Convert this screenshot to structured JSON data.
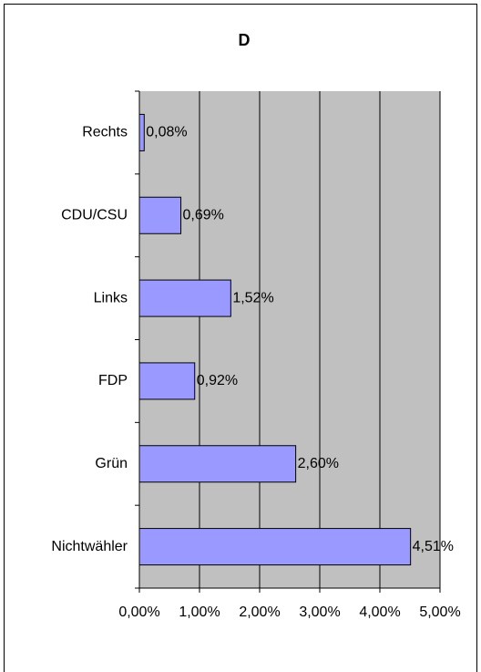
{
  "chart_data": {
    "type": "bar",
    "orientation": "horizontal",
    "title": "D",
    "categories": [
      "Rechts",
      "CDU/CSU",
      "Links",
      "FDP",
      "Grün",
      "Nichtwähler"
    ],
    "values": [
      0.08,
      0.69,
      1.52,
      0.92,
      2.6,
      4.51
    ],
    "value_labels": [
      "0,08%",
      "0,69%",
      "1,52%",
      "0,92%",
      "2,60%",
      "4,51%"
    ],
    "color": "#9999ff",
    "xlim": [
      0,
      5
    ],
    "xticks": [
      {
        "value": 0,
        "label": "0,00%"
      },
      {
        "value": 1,
        "label": "1,00%"
      },
      {
        "value": 2,
        "label": "2,00%"
      },
      {
        "value": 3,
        "label": "3,00%"
      },
      {
        "value": 4,
        "label": "4,00%"
      },
      {
        "value": 5,
        "label": "5,00%"
      }
    ],
    "grid": true
  }
}
